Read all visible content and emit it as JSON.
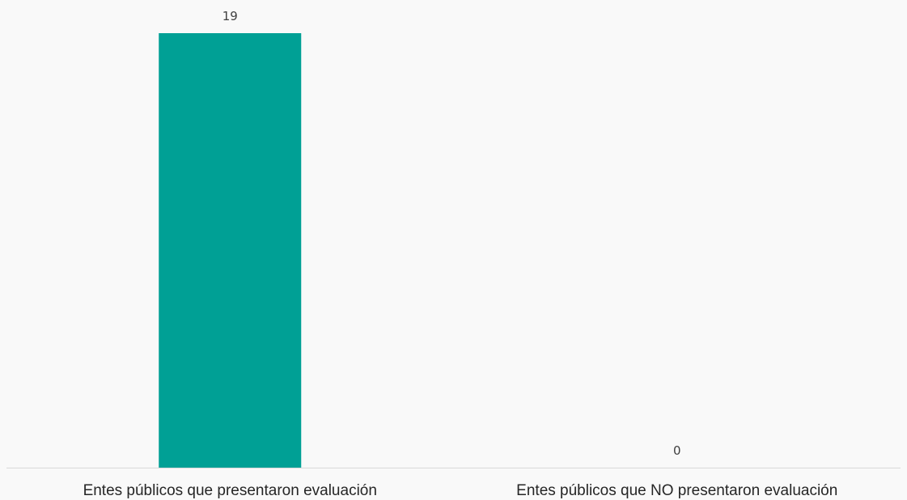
{
  "chart_data": {
    "type": "bar",
    "title": "",
    "xlabel": "",
    "ylabel": "",
    "categories": [
      "Entes públicos que presentaron evaluación",
      "Entes públicos que NO presentaron evaluación"
    ],
    "values": [
      19,
      0
    ],
    "data_labels": [
      "19",
      "0"
    ],
    "ylim": [
      0,
      19
    ],
    "grid": false,
    "legend": "none",
    "bar_color": "#00a095",
    "background_color": "#f9f9f9",
    "axis_color": "#d9d9d9",
    "label_color": "#262626",
    "data_label_color": "#404040"
  }
}
